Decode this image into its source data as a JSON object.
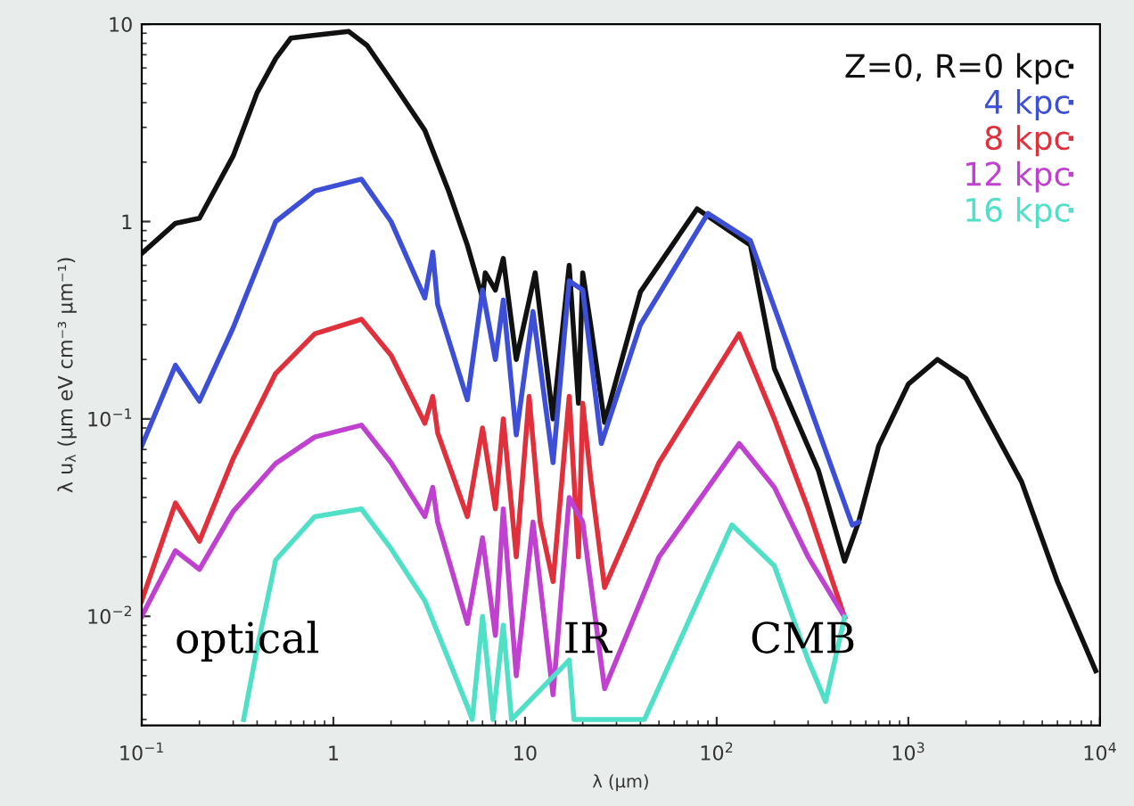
{
  "chart_data": {
    "type": "line",
    "xlabel": "λ (μm)",
    "ylabel": "λ u$_{λ}$ (μm eV cm⁻³ μm⁻¹)",
    "log": "xy",
    "xlim": [
      0.1,
      10000
    ],
    "ylim": [
      0.0028,
      10
    ],
    "xticks": [
      {
        "value": 0.1,
        "label": "10$^{−1}$"
      },
      1,
      10,
      {
        "value": 100,
        "label": "10$^{2}$"
      },
      {
        "value": 1000,
        "label": "10$^{3}$"
      },
      {
        "value": 10000,
        "label": "10$^{4}$"
      }
    ],
    "yticks": [
      {
        "value": 0.01,
        "label": "10$^{−2}$"
      },
      {
        "value": 0.1,
        "label": "10$^{−1}$"
      },
      1,
      10
    ],
    "legend": "top right",
    "grid": false,
    "marker": "none",
    "line_style": "solid",
    "series": [
      {
        "name": "Z=0, R=0 kpc",
        "color": "#111111",
        "x": [
          0.1,
          0.15,
          0.2,
          0.3,
          0.4,
          0.5,
          0.6,
          0.8,
          1.2,
          1.5,
          2,
          3,
          4,
          5,
          6,
          6.2,
          7,
          7.7,
          9,
          11.3,
          14,
          17,
          19,
          20,
          22,
          26,
          40,
          79,
          150,
          200,
          339,
          465,
          550,
          700,
          1000,
          1420,
          2000,
          3900,
          6000,
          9500
        ],
        "values": [
          0.69,
          0.98,
          1.04,
          2.15,
          4.5,
          6.7,
          8.5,
          8.8,
          9.2,
          7.8,
          5.2,
          2.9,
          1.42,
          0.76,
          0.41,
          0.55,
          0.45,
          0.65,
          0.2,
          0.55,
          0.1,
          0.6,
          0.12,
          0.55,
          0.3,
          0.096,
          0.44,
          1.16,
          0.76,
          0.18,
          0.055,
          0.019,
          0.03,
          0.073,
          0.15,
          0.2,
          0.16,
          0.048,
          0.015,
          0.0053
        ]
      },
      {
        "name": "4 kpc",
        "color": "#3c4fd6",
        "x": [
          0.1,
          0.15,
          0.2,
          0.3,
          0.5,
          0.8,
          1.4,
          2,
          3,
          3.3,
          3.5,
          5,
          6,
          7,
          7.7,
          9,
          11,
          14,
          17,
          20,
          25,
          40,
          90,
          150,
          250,
          510,
          550
        ],
        "values": [
          0.073,
          0.187,
          0.123,
          0.29,
          1.0,
          1.43,
          1.64,
          1.0,
          0.41,
          0.7,
          0.38,
          0.125,
          0.45,
          0.2,
          0.4,
          0.083,
          0.35,
          0.06,
          0.5,
          0.45,
          0.075,
          0.3,
          1.1,
          0.8,
          0.2,
          0.029,
          0.03
        ]
      },
      {
        "name": "8 kpc",
        "color": "#e0303c",
        "x": [
          0.1,
          0.15,
          0.2,
          0.3,
          0.5,
          0.8,
          1.4,
          2,
          3,
          3.3,
          3.5,
          5,
          6,
          7,
          7.7,
          9,
          10.5,
          12,
          14,
          17,
          19,
          20,
          22,
          26,
          50,
          131,
          200,
          300,
          465
        ],
        "values": [
          0.012,
          0.0375,
          0.024,
          0.063,
          0.17,
          0.27,
          0.32,
          0.21,
          0.095,
          0.13,
          0.085,
          0.032,
          0.09,
          0.035,
          0.1,
          0.02,
          0.13,
          0.03,
          0.015,
          0.13,
          0.02,
          0.12,
          0.05,
          0.014,
          0.06,
          0.27,
          0.1,
          0.035,
          0.0099
        ]
      },
      {
        "name": "12 kpc",
        "color": "#c040d0",
        "x": [
          0.1,
          0.15,
          0.2,
          0.3,
          0.5,
          0.8,
          1.4,
          2,
          3,
          3.3,
          3.5,
          5,
          6,
          7,
          7.7,
          9,
          11,
          14,
          17,
          20,
          26,
          50,
          131,
          200,
          300,
          465
        ],
        "values": [
          0.01,
          0.0215,
          0.0173,
          0.034,
          0.0595,
          0.081,
          0.093,
          0.06,
          0.032,
          0.045,
          0.03,
          0.0092,
          0.025,
          0.008,
          0.035,
          0.005,
          0.03,
          0.004,
          0.04,
          0.03,
          0.0043,
          0.02,
          0.075,
          0.045,
          0.02,
          0.0099
        ]
      },
      {
        "name": "16 kpc",
        "color": "#50e0c8",
        "x": [
          0.34,
          0.4,
          0.5,
          0.8,
          1.4,
          2,
          3,
          4,
          5,
          5.3,
          6,
          6.8,
          7.7,
          8.5,
          17,
          18,
          42,
          120,
          200,
          300,
          370,
          465
        ],
        "values": [
          0.003,
          0.0069,
          0.0193,
          0.032,
          0.035,
          0.022,
          0.012,
          0.006,
          0.0035,
          0.003,
          0.01,
          0.003,
          0.009,
          0.003,
          0.006,
          0.003,
          0.003,
          0.029,
          0.018,
          0.006,
          0.0037,
          0.0099
        ]
      }
    ],
    "annotations": [
      "optical",
      "IR",
      "CMB"
    ]
  }
}
